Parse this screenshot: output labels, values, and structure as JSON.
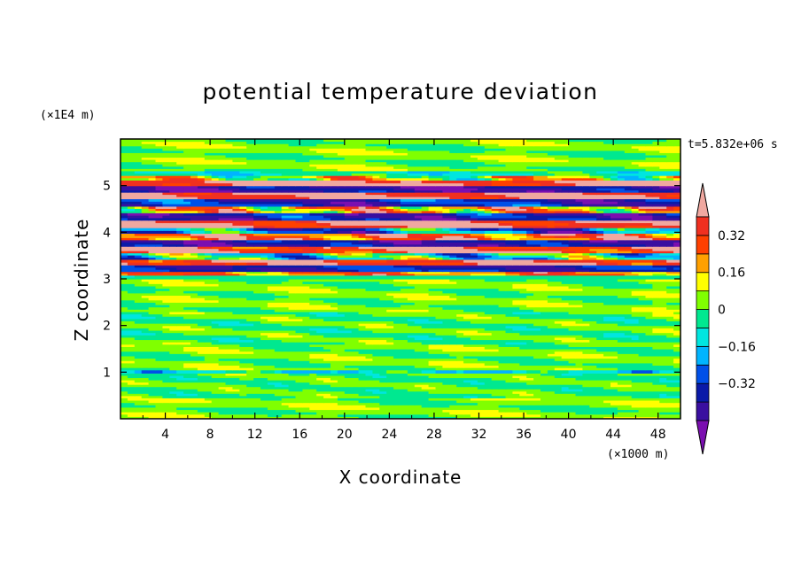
{
  "chart_data": {
    "type": "heatmap",
    "title": "potential temperature deviation",
    "xlabel": "X coordinate",
    "ylabel": "Z coordinate",
    "x_unit": "(×1000 m)",
    "y_unit": "(×1E4 m)",
    "time_label": "t=5.832e+06 s",
    "xlim": [
      0,
      50
    ],
    "ylim": [
      0,
      6
    ],
    "x_ticks": [
      4,
      8,
      12,
      16,
      20,
      24,
      28,
      32,
      36,
      40,
      44,
      48
    ],
    "y_ticks": [
      1,
      2,
      3,
      4,
      5
    ],
    "colorbar": {
      "levels": [
        -0.48,
        -0.4,
        -0.32,
        -0.24,
        -0.16,
        -0.08,
        0,
        0.08,
        0.16,
        0.24,
        0.32,
        0.4
      ],
      "colors": [
        "#7b0fb0",
        "#3a0fa0",
        "#0a1aa8",
        "#0050e8",
        "#00b4ff",
        "#00e6e0",
        "#00e890",
        "#80ff00",
        "#ffff00",
        "#ffa000",
        "#ff4000",
        "#f03020",
        "#f0a8a0"
      ],
      "tick_labels": [
        "0.32",
        "0.16",
        "0",
        "−0.16",
        "−0.32"
      ],
      "tick_values": [
        0.32,
        0.16,
        0,
        -0.16,
        -0.32
      ]
    },
    "bands": [
      {
        "z0": 0.0,
        "z1": 0.45,
        "value": 0.03,
        "amp": 0.06,
        "k": 3
      },
      {
        "z0": 0.45,
        "z1": 0.98,
        "value": 0.0,
        "amp": 0.06,
        "k": 5
      },
      {
        "z0": 0.98,
        "z1": 1.05,
        "value": -0.12,
        "amp": 0.1,
        "k": 7
      },
      {
        "z0": 1.05,
        "z1": 1.6,
        "value": 0.03,
        "amp": 0.06,
        "k": 4
      },
      {
        "z0": 1.6,
        "z1": 2.3,
        "value": 0.0,
        "amp": 0.07,
        "k": 5
      },
      {
        "z0": 2.3,
        "z1": 3.0,
        "value": 0.03,
        "amp": 0.06,
        "k": 4
      },
      {
        "z0": 3.0,
        "z1": 3.08,
        "value": -0.06,
        "amp": 0.02,
        "k": 2
      },
      {
        "z0": 3.08,
        "z1": 3.16,
        "value": 0.24,
        "amp": 0.12,
        "k": 6
      },
      {
        "z0": 3.16,
        "z1": 3.3,
        "value": -0.36,
        "amp": 0.08,
        "k": 4
      },
      {
        "z0": 3.3,
        "z1": 3.42,
        "value": 0.38,
        "amp": 0.1,
        "k": 5
      },
      {
        "z0": 3.42,
        "z1": 3.56,
        "value": -0.1,
        "amp": 0.2,
        "k": 6
      },
      {
        "z0": 3.56,
        "z1": 3.7,
        "value": 0.38,
        "amp": 0.12,
        "k": 4
      },
      {
        "z0": 3.7,
        "z1": 3.84,
        "value": -0.4,
        "amp": 0.08,
        "k": 5
      },
      {
        "z0": 3.84,
        "z1": 3.98,
        "value": 0.3,
        "amp": 0.15,
        "k": 6
      },
      {
        "z0": 3.98,
        "z1": 4.1,
        "value": -0.24,
        "amp": 0.2,
        "k": 5
      },
      {
        "z0": 4.1,
        "z1": 4.26,
        "value": 0.4,
        "amp": 0.1,
        "k": 4
      },
      {
        "z0": 4.26,
        "z1": 4.42,
        "value": -0.38,
        "amp": 0.1,
        "k": 5
      },
      {
        "z0": 4.42,
        "z1": 4.56,
        "value": 0.2,
        "amp": 0.2,
        "k": 7
      },
      {
        "z0": 4.56,
        "z1": 4.72,
        "value": -0.36,
        "amp": 0.1,
        "k": 4
      },
      {
        "z0": 4.72,
        "z1": 4.86,
        "value": 0.42,
        "amp": 0.08,
        "k": 5
      },
      {
        "z0": 4.86,
        "z1": 5.0,
        "value": -0.42,
        "amp": 0.08,
        "k": 4
      },
      {
        "z0": 5.0,
        "z1": 5.12,
        "value": 0.42,
        "amp": 0.08,
        "k": 3
      },
      {
        "z0": 5.12,
        "z1": 5.22,
        "value": 0.1,
        "amp": 0.2,
        "k": 6
      },
      {
        "z0": 5.22,
        "z1": 5.32,
        "value": -0.08,
        "amp": 0.08,
        "k": 5
      },
      {
        "z0": 5.32,
        "z1": 6.0,
        "value": 0.03,
        "amp": 0.06,
        "k": 3
      }
    ]
  }
}
